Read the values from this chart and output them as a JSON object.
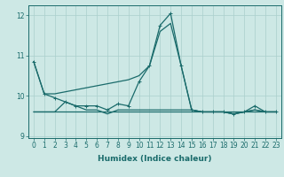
{
  "xlabel": "Humidex (Indice chaleur)",
  "xlim": [
    -0.5,
    23.5
  ],
  "ylim": [
    8.95,
    12.25
  ],
  "yticks": [
    9,
    10,
    11,
    12
  ],
  "xticks": [
    0,
    1,
    2,
    3,
    4,
    5,
    6,
    7,
    8,
    9,
    10,
    11,
    12,
    13,
    14,
    15,
    16,
    17,
    18,
    19,
    20,
    21,
    22,
    23
  ],
  "background_color": "#cde8e5",
  "grid_color": "#aacfcc",
  "line_color": "#1a6b6b",
  "series": [
    [
      10.85,
      10.05,
      10.05,
      10.1,
      10.15,
      10.2,
      10.25,
      10.3,
      10.35,
      10.4,
      10.5,
      10.75,
      11.6,
      11.8,
      10.75,
      9.65,
      9.6,
      9.6,
      9.6,
      9.55,
      9.6,
      9.65,
      9.6,
      9.6
    ],
    [
      10.85,
      10.05,
      9.95,
      9.85,
      9.75,
      9.75,
      9.75,
      9.65,
      9.8,
      9.75,
      10.35,
      10.75,
      11.75,
      12.05,
      10.75,
      9.65,
      9.6,
      9.6,
      9.6,
      9.55,
      9.6,
      9.75,
      9.6,
      9.6
    ],
    [
      9.6,
      9.6,
      9.6,
      9.85,
      9.75,
      9.65,
      9.65,
      9.55,
      9.65,
      9.65,
      9.65,
      9.65,
      9.65,
      9.65,
      9.65,
      9.65,
      9.6,
      9.6,
      9.6,
      9.55,
      9.6,
      9.65,
      9.6,
      9.6
    ],
    [
      9.6,
      9.6,
      9.6,
      9.6,
      9.6,
      9.6,
      9.6,
      9.6,
      9.6,
      9.6,
      9.6,
      9.6,
      9.6,
      9.6,
      9.6,
      9.6,
      9.6,
      9.6,
      9.6,
      9.6,
      9.6,
      9.6,
      9.6,
      9.6
    ]
  ],
  "marker_series": [
    1
  ],
  "marker": "+",
  "marker_size": 3.5,
  "linewidth": 0.9,
  "font_size_axis": 6.5,
  "font_size_tick": 5.5
}
